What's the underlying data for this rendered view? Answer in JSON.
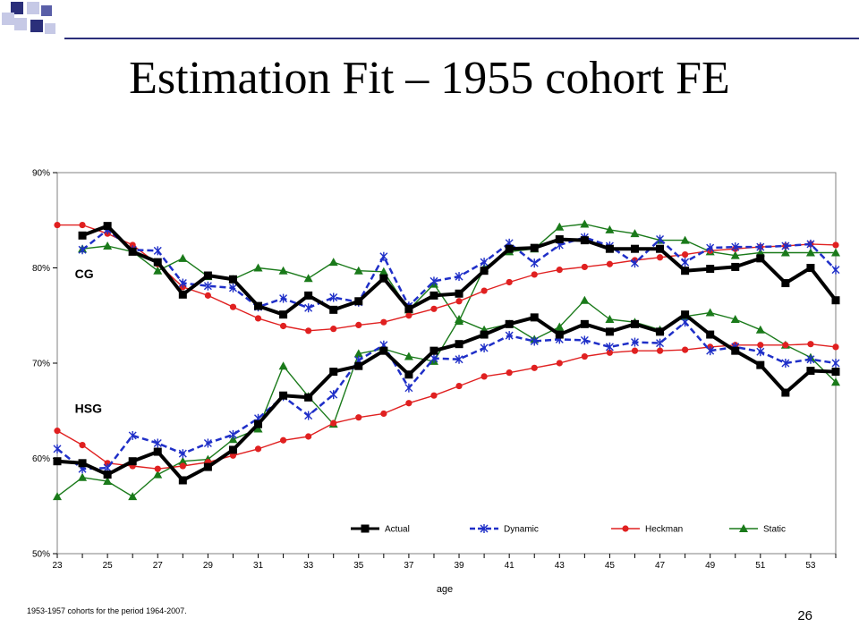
{
  "slide": {
    "title": "Estimation Fit – 1955 cohort FE",
    "page_number": "26",
    "accent_color": "#2b2f7a"
  },
  "chart_data": {
    "type": "line",
    "title": "",
    "xlabel": "age",
    "ylabel": "",
    "footnote": "1953-1957 cohorts for the period 1964-2007.",
    "xlim": [
      23,
      54
    ],
    "ylim": [
      0.5,
      0.9
    ],
    "x_ticks": [
      23,
      25,
      27,
      29,
      31,
      33,
      35,
      37,
      39,
      41,
      43,
      45,
      47,
      49,
      51,
      53
    ],
    "y_ticks": [
      0.5,
      0.6,
      0.7,
      0.8,
      0.9
    ],
    "y_tick_labels": [
      "50%",
      "60%",
      "70%",
      "80%",
      "90%"
    ],
    "grid": false,
    "legend_position": "bottom-right",
    "annotations": [
      {
        "text": "CG",
        "x": 23.7,
        "y": 0.789
      },
      {
        "text": "HSG",
        "x": 23.7,
        "y": 0.648
      }
    ],
    "series": [
      {
        "name": "Actual",
        "group": "CG",
        "color": "#000000",
        "marker": "square",
        "dash": "solid",
        "width": 4,
        "x": [
          24,
          25,
          26,
          27,
          28,
          29,
          30,
          31,
          32,
          33,
          34,
          35,
          36,
          37,
          38,
          39,
          40,
          41,
          42,
          43,
          44,
          45,
          46,
          47,
          48,
          49,
          50,
          51,
          52,
          53,
          54
        ],
        "y": [
          0.834,
          0.844,
          0.817,
          0.806,
          0.772,
          0.792,
          0.788,
          0.76,
          0.751,
          0.771,
          0.756,
          0.765,
          0.789,
          0.757,
          0.771,
          0.773,
          0.797,
          0.82,
          0.821,
          0.83,
          0.829,
          0.82,
          0.82,
          0.82,
          0.797,
          0.799,
          0.801,
          0.81,
          0.784,
          0.8,
          0.766
        ]
      },
      {
        "name": "Dynamic",
        "group": "CG",
        "color": "#1f2fc8",
        "marker": "star",
        "dash": "dashed",
        "width": 2.5,
        "x": [
          24,
          25,
          26,
          27,
          28,
          29,
          30,
          31,
          32,
          33,
          34,
          35,
          36,
          37,
          38,
          39,
          40,
          41,
          42,
          43,
          44,
          45,
          46,
          47,
          48,
          49,
          50,
          51,
          52,
          53,
          54
        ],
        "y": [
          0.819,
          0.84,
          0.819,
          0.818,
          0.784,
          0.781,
          0.779,
          0.759,
          0.768,
          0.758,
          0.769,
          0.764,
          0.812,
          0.76,
          0.786,
          0.791,
          0.806,
          0.826,
          0.805,
          0.824,
          0.832,
          0.823,
          0.805,
          0.83,
          0.806,
          0.821,
          0.822,
          0.822,
          0.823,
          0.825,
          0.798
        ]
      },
      {
        "name": "Heckman",
        "group": "CG",
        "color": "#e02020",
        "marker": "circle",
        "dash": "solid",
        "width": 1.4,
        "x": [
          23,
          24,
          25,
          26,
          27,
          28,
          29,
          30,
          31,
          32,
          33,
          34,
          35,
          36,
          37,
          38,
          39,
          40,
          41,
          42,
          43,
          44,
          45,
          46,
          47,
          48,
          49,
          50,
          51,
          52,
          53,
          54
        ],
        "y": [
          0.845,
          0.845,
          0.836,
          0.824,
          0.804,
          0.78,
          0.771,
          0.759,
          0.747,
          0.739,
          0.734,
          0.736,
          0.74,
          0.743,
          0.75,
          0.757,
          0.765,
          0.776,
          0.785,
          0.793,
          0.798,
          0.801,
          0.804,
          0.808,
          0.811,
          0.814,
          0.818,
          0.82,
          0.822,
          0.823,
          0.825,
          0.824
        ]
      },
      {
        "name": "Static",
        "group": "CG",
        "color": "#1a7a1a",
        "marker": "triangle",
        "dash": "solid",
        "width": 1.4,
        "x": [
          24,
          25,
          26,
          27,
          28,
          29,
          30,
          31,
          32,
          33,
          34,
          35,
          36,
          37,
          38,
          39,
          40,
          41,
          42,
          43,
          44,
          45,
          46,
          47,
          48,
          49,
          50,
          51,
          52,
          53,
          54
        ],
        "y": [
          0.82,
          0.823,
          0.817,
          0.797,
          0.81,
          0.791,
          0.788,
          0.8,
          0.797,
          0.789,
          0.806,
          0.797,
          0.796,
          0.756,
          0.783,
          0.744,
          0.8,
          0.817,
          0.82,
          0.843,
          0.846,
          0.84,
          0.836,
          0.829,
          0.829,
          0.817,
          0.813,
          0.816,
          0.816,
          0.816,
          0.816
        ]
      },
      {
        "name": "Actual",
        "group": "HSG",
        "color": "#000000",
        "marker": "square",
        "dash": "solid",
        "width": 4,
        "x": [
          23,
          24,
          25,
          26,
          27,
          28,
          29,
          30,
          31,
          32,
          33,
          34,
          35,
          36,
          37,
          38,
          39,
          40,
          41,
          42,
          43,
          44,
          45,
          46,
          47,
          48,
          49,
          50,
          51,
          52,
          53,
          54
        ],
        "y": [
          0.597,
          0.595,
          0.583,
          0.597,
          0.607,
          0.577,
          0.591,
          0.609,
          0.636,
          0.666,
          0.664,
          0.691,
          0.697,
          0.713,
          0.688,
          0.713,
          0.72,
          0.73,
          0.741,
          0.748,
          0.73,
          0.741,
          0.733,
          0.741,
          0.733,
          0.751,
          0.73,
          0.713,
          0.698,
          0.669,
          0.692,
          0.691
        ]
      },
      {
        "name": "Dynamic",
        "group": "HSG",
        "color": "#1f2fc8",
        "marker": "star",
        "dash": "dashed",
        "width": 2.5,
        "x": [
          23,
          24,
          25,
          26,
          27,
          28,
          29,
          30,
          31,
          32,
          33,
          34,
          35,
          36,
          37,
          38,
          39,
          40,
          41,
          42,
          43,
          44,
          45,
          46,
          47,
          48,
          49,
          50,
          51,
          52,
          53,
          54
        ],
        "y": [
          0.61,
          0.589,
          0.59,
          0.624,
          0.616,
          0.605,
          0.616,
          0.625,
          0.642,
          0.665,
          0.645,
          0.667,
          0.703,
          0.719,
          0.674,
          0.705,
          0.704,
          0.716,
          0.729,
          0.723,
          0.725,
          0.724,
          0.717,
          0.722,
          0.721,
          0.743,
          0.713,
          0.717,
          0.712,
          0.7,
          0.704,
          0.7
        ]
      },
      {
        "name": "Heckman",
        "group": "HSG",
        "color": "#e02020",
        "marker": "circle",
        "dash": "solid",
        "width": 1.4,
        "x": [
          23,
          24,
          25,
          26,
          27,
          28,
          29,
          30,
          31,
          32,
          33,
          34,
          35,
          36,
          37,
          38,
          39,
          40,
          41,
          42,
          43,
          44,
          45,
          46,
          47,
          48,
          49,
          50,
          51,
          52,
          53,
          54
        ],
        "y": [
          0.629,
          0.614,
          0.595,
          0.592,
          0.589,
          0.592,
          0.596,
          0.603,
          0.61,
          0.619,
          0.623,
          0.637,
          0.643,
          0.647,
          0.658,
          0.666,
          0.676,
          0.686,
          0.69,
          0.695,
          0.7,
          0.707,
          0.711,
          0.713,
          0.713,
          0.714,
          0.717,
          0.719,
          0.719,
          0.719,
          0.72,
          0.717
        ]
      },
      {
        "name": "Static",
        "group": "HSG",
        "color": "#1a7a1a",
        "marker": "triangle",
        "dash": "solid",
        "width": 1.4,
        "x": [
          23,
          24,
          25,
          26,
          27,
          28,
          29,
          30,
          31,
          32,
          33,
          34,
          35,
          36,
          37,
          38,
          39,
          40,
          41,
          42,
          43,
          44,
          45,
          46,
          47,
          48,
          49,
          50,
          51,
          52,
          53,
          54
        ],
        "y": [
          0.56,
          0.58,
          0.576,
          0.56,
          0.583,
          0.597,
          0.599,
          0.62,
          0.631,
          0.697,
          0.665,
          0.636,
          0.71,
          0.715,
          0.707,
          0.702,
          0.746,
          0.735,
          0.741,
          0.725,
          0.738,
          0.766,
          0.746,
          0.743,
          0.735,
          0.749,
          0.753,
          0.746,
          0.735,
          0.719,
          0.706,
          0.68
        ]
      }
    ]
  }
}
